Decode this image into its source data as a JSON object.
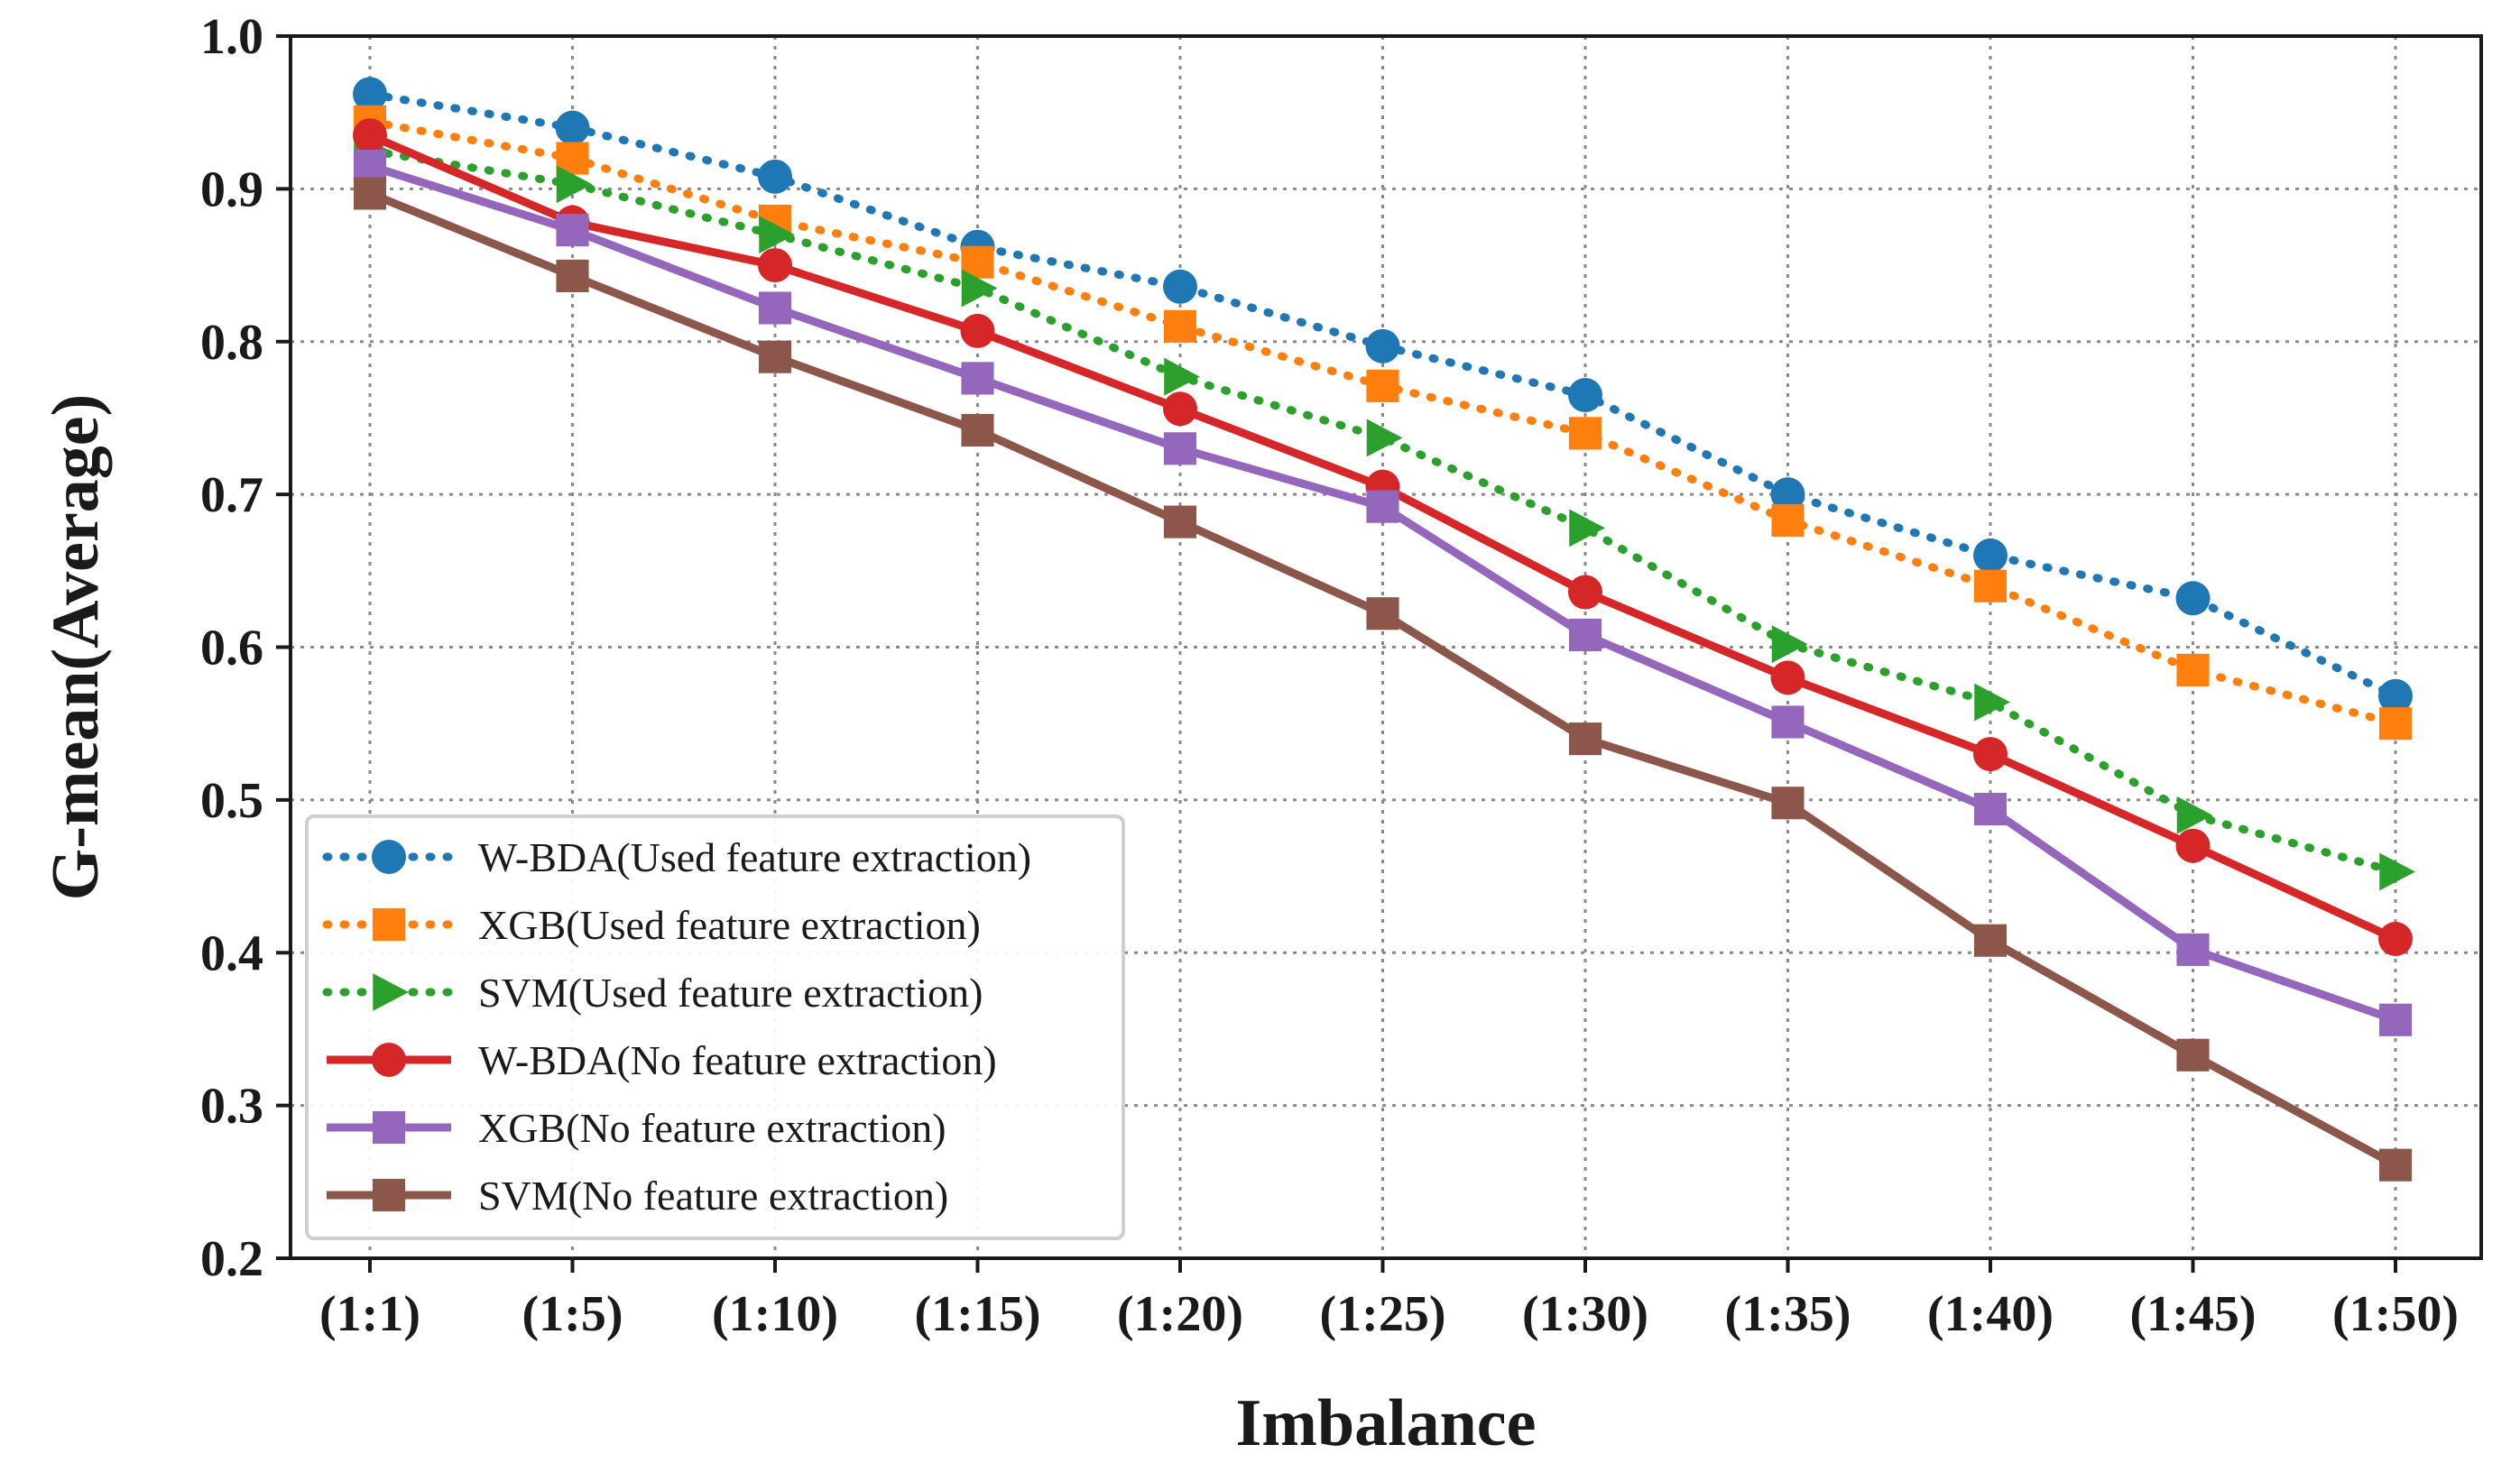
{
  "chart_data": {
    "type": "line",
    "title": "",
    "xlabel": "Imbalance",
    "ylabel": "G-mean(Average)",
    "categories": [
      "(1:1)",
      "(1:5)",
      "(1:10)",
      "(1:15)",
      "(1:20)",
      "(1:25)",
      "(1:30)",
      "(1:35)",
      "(1:40)",
      "(1:45)",
      "(1:50)"
    ],
    "ylim": [
      0.2,
      1.0
    ],
    "yticks": [
      "0.2",
      "0.3",
      "0.4",
      "0.5",
      "0.6",
      "0.7",
      "0.8",
      "0.9",
      "1.0"
    ],
    "grid": true,
    "legend_position": "bottom-left",
    "series": [
      {
        "name": "W-BDA(Used feature extraction)",
        "color": "#1f77b4",
        "line_style": "dotted",
        "marker": "circle",
        "values": [
          0.962,
          0.94,
          0.908,
          0.862,
          0.836,
          0.797,
          0.765,
          0.7,
          0.66,
          0.632,
          0.568
        ]
      },
      {
        "name": "XGB(Used feature extraction)",
        "color": "#ff7f0e",
        "line_style": "dotted",
        "marker": "square",
        "values": [
          0.944,
          0.92,
          0.879,
          0.852,
          0.81,
          0.771,
          0.74,
          0.683,
          0.64,
          0.585,
          0.55
        ]
      },
      {
        "name": "SVM(Used feature extraction)",
        "color": "#2ca02c",
        "line_style": "dotted",
        "marker": "triangle-right",
        "values": [
          0.925,
          0.903,
          0.87,
          0.835,
          0.777,
          0.737,
          0.678,
          0.602,
          0.564,
          0.49,
          0.453
        ]
      },
      {
        "name": "W-BDA(No feature extraction)",
        "color": "#d62728",
        "line_style": "solid",
        "marker": "circle",
        "values": [
          0.935,
          0.878,
          0.85,
          0.807,
          0.756,
          0.705,
          0.636,
          0.58,
          0.53,
          0.47,
          0.409
        ]
      },
      {
        "name": "XGB(No feature extraction)",
        "color": "#9467bd",
        "line_style": "solid",
        "marker": "square",
        "values": [
          0.915,
          0.873,
          0.822,
          0.776,
          0.73,
          0.692,
          0.608,
          0.551,
          0.494,
          0.402,
          0.356
        ]
      },
      {
        "name": "SVM(No feature extraction)",
        "color": "#8c564b",
        "line_style": "solid",
        "marker": "square",
        "values": [
          0.897,
          0.843,
          0.79,
          0.742,
          0.682,
          0.622,
          0.54,
          0.498,
          0.408,
          0.333,
          0.261
        ]
      }
    ]
  }
}
